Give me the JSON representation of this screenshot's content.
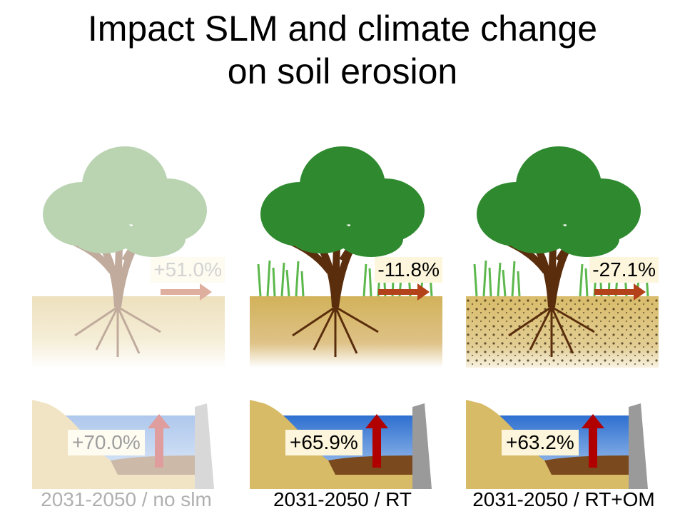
{
  "title_line1": "Impact SLM and climate change",
  "title_line2": "on soil erosion",
  "panels": [
    {
      "erosion_change": "+51.0%",
      "reservoir_change": "+70.0%",
      "caption": "2031-2050 / no slm"
    },
    {
      "erosion_change": "-11.8%",
      "reservoir_change": "+65.9%",
      "caption": "2031-2050 / RT"
    },
    {
      "erosion_change": "-27.1%",
      "reservoir_change": "+63.2%",
      "caption": "2031-2050 / RT+OM"
    }
  ],
  "colors": {
    "leaf": "#2f8a2f",
    "trunk": "#5a2d0c",
    "soil": "#d6b866",
    "grass": "#6cc05a",
    "arrow_erosion": "#b3421a",
    "arrow_reservoir": "#b00000",
    "water": "#3a7fd8",
    "dam": "#9a9a9a"
  }
}
